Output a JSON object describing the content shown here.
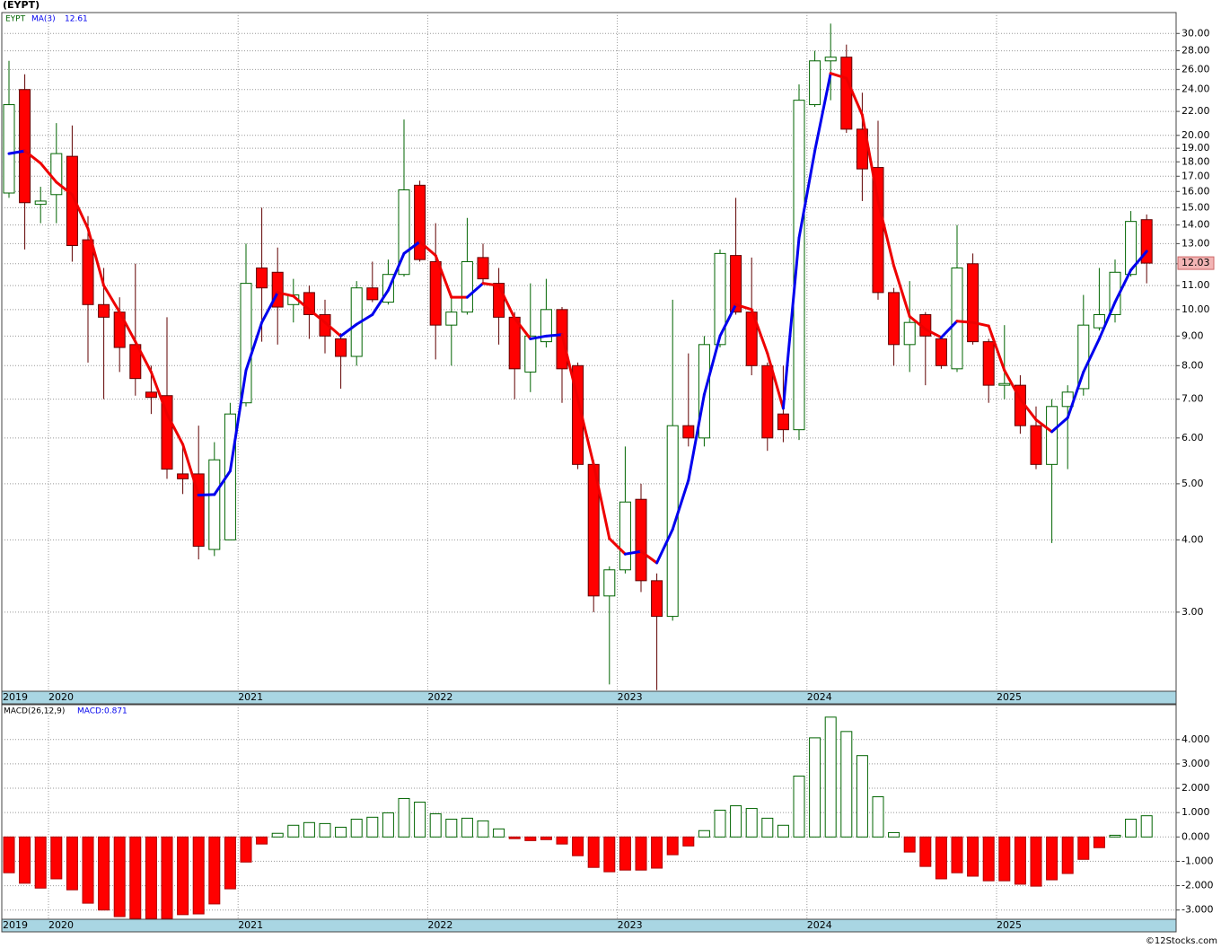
{
  "title": "(EYPT)",
  "footer": "©12Stocks.com",
  "chart_data": [
    {
      "type": "candlestick",
      "symbol": "EYPT",
      "categories": [
        "2019",
        null,
        null,
        "2020",
        null,
        null,
        null,
        null,
        null,
        null,
        null,
        null,
        null,
        null,
        null,
        "2021",
        null,
        null,
        null,
        null,
        null,
        null,
        null,
        null,
        null,
        null,
        null,
        "2022",
        null,
        null,
        null,
        null,
        null,
        null,
        null,
        null,
        null,
        null,
        null,
        "2023",
        null,
        null,
        null,
        null,
        null,
        null,
        null,
        null,
        null,
        null,
        null,
        "2024",
        null,
        null,
        null,
        null,
        null,
        null,
        null,
        null,
        null,
        null,
        null,
        "2025",
        null,
        null,
        null,
        null,
        null,
        null,
        null,
        null,
        null
      ],
      "open": [
        15.9,
        24,
        15.2,
        15.8,
        18.4,
        13.2,
        10.2,
        9.9,
        8.7,
        7.2,
        7.1,
        5.2,
        5.2,
        3.85,
        4.0,
        6.9,
        11.8,
        11.6,
        10.2,
        10.7,
        9.8,
        8.9,
        8.3,
        10.9,
        10.3,
        11.5,
        16.4,
        12.1,
        9.4,
        9.9,
        12.3,
        11.1,
        9.7,
        7.8,
        8.8,
        10,
        8,
        5.4,
        3.2,
        3.55,
        4.7,
        3.4,
        2.95,
        6.3,
        6.0,
        8.7,
        12.4,
        9.9,
        8,
        6.6,
        6.2,
        22.6,
        26.9,
        27.3,
        20.5,
        17.6,
        10.7,
        8.7,
        9.8,
        8.9,
        7.9,
        12,
        8.8,
        7.4,
        7.4,
        6.3,
        5.4,
        6.8,
        7.3,
        9.3,
        9.8,
        11.5,
        14.3
      ],
      "high": [
        26.9,
        25.5,
        16.3,
        21,
        20.8,
        14.5,
        11.8,
        10.5,
        12,
        8,
        9.7,
        5.8,
        6.3,
        5.9,
        6.9,
        13,
        15,
        12.8,
        11.3,
        11,
        10.4,
        9.1,
        11.2,
        12.1,
        12.2,
        21.3,
        16.7,
        14.1,
        10.5,
        14.4,
        13,
        11.8,
        9.9,
        11.1,
        11.3,
        10.1,
        8.1,
        5.5,
        3.6,
        5.8,
        5.0,
        3.5,
        10.4,
        8.4,
        9,
        12.7,
        15.6,
        12.3,
        8.1,
        8,
        24.5,
        28,
        31.2,
        28.7,
        23.7,
        21.2,
        10.9,
        11.2,
        9.9,
        8.9,
        14,
        12.5,
        8.9,
        9.4,
        7.7,
        6.8,
        7,
        7.4,
        10.6,
        11.8,
        12.2,
        14.8,
        14.6
      ],
      "low": [
        15.6,
        12.7,
        14.1,
        14.1,
        12.1,
        8.1,
        7,
        7.8,
        7.1,
        6.6,
        5.1,
        4.8,
        3.7,
        3.75,
        4.0,
        6.8,
        8.8,
        8.7,
        9.5,
        8.9,
        8.4,
        7.3,
        8,
        10.3,
        10.2,
        11.4,
        12.1,
        8.2,
        8,
        9.8,
        11.1,
        8.7,
        7,
        7.2,
        8.6,
        6.9,
        5.3,
        3.0,
        2.25,
        3.5,
        3.25,
        2.2,
        2.9,
        5.8,
        5.8,
        8.6,
        9.8,
        7.7,
        5.7,
        5.9,
        5.95,
        22.4,
        23,
        20.2,
        15.4,
        10.4,
        8,
        7.8,
        7.4,
        7.9,
        7.8,
        8.7,
        6.9,
        7,
        6.1,
        5.3,
        3.95,
        5.3,
        7.1,
        9.2,
        9.5,
        11.4,
        11.1
      ],
      "close": [
        22.6,
        15.3,
        15.4,
        18.6,
        12.9,
        10.2,
        9.7,
        8.6,
        7.6,
        7.05,
        5.3,
        5.1,
        3.9,
        5.5,
        6.6,
        11.1,
        10.9,
        10.1,
        10.6,
        9.8,
        9,
        8.3,
        10.9,
        10.4,
        11.5,
        16.1,
        12.2,
        9.4,
        9.9,
        12.1,
        11.3,
        9.7,
        7.9,
        9,
        10,
        7.9,
        5.4,
        3.2,
        3.55,
        4.65,
        3.4,
        2.95,
        6.3,
        6.0,
        8.7,
        12.5,
        9.9,
        8,
        6,
        6.2,
        23,
        26.9,
        27.3,
        20.5,
        17.5,
        10.7,
        8.7,
        9.5,
        9,
        8,
        11.8,
        8.8,
        7.4,
        7.45,
        6.3,
        5.4,
        6.8,
        7.2,
        9.4,
        9.8,
        11.6,
        14.2,
        12.03
      ],
      "up_color": "#006400",
      "down_color": "#ff0000",
      "ma": {
        "name": "MA(3)",
        "current": 12.61,
        "up_color": "#0000ee",
        "down_color": "#ee0000",
        "values": [
          18.6,
          18.8,
          17.9,
          16.6,
          15.8,
          13.8,
          11.0,
          9.9,
          8.8,
          7.8,
          6.6,
          5.85,
          4.78,
          4.79,
          5.26,
          7.85,
          9.5,
          10.7,
          10.55,
          10.0,
          9.5,
          9.0,
          9.43,
          9.8,
          10.8,
          12.5,
          13.1,
          12.4,
          10.5,
          10.5,
          11.1,
          11.0,
          9.66,
          8.9,
          9.0,
          9.05,
          7.0,
          5.4,
          4.02,
          3.78,
          3.82,
          3.65,
          4.17,
          5.07,
          7.13,
          9.0,
          10.2,
          10.0,
          8.4,
          6.75,
          13.3,
          18.8,
          25.6,
          25.1,
          21.7,
          15.4,
          11.9,
          9.73,
          9.25,
          8.95,
          9.55,
          9.5,
          9.37,
          7.85,
          7.0,
          6.45,
          6.15,
          6.5,
          7.8,
          8.9,
          10.3,
          11.7,
          12.61
        ]
      },
      "log_scale": true,
      "grid": true,
      "ylim": [
        2.19,
        32.6
      ],
      "yticks": [
        {
          "value": 3,
          "label": "3.00"
        },
        {
          "value": 4,
          "label": "4.00"
        },
        {
          "value": 5,
          "label": "5.00"
        },
        {
          "value": 6,
          "label": "6.00"
        },
        {
          "value": 7,
          "label": "7.00"
        },
        {
          "value": 8,
          "label": "8.00"
        },
        {
          "value": 9,
          "label": "9.00"
        },
        {
          "value": 10,
          "label": "10.00"
        },
        {
          "value": 11,
          "label": "11.00"
        },
        {
          "value": 12,
          "label": "12.00"
        },
        {
          "value": 13,
          "label": "13.00"
        },
        {
          "value": 14,
          "label": "14.00"
        },
        {
          "value": 15,
          "label": "15.00"
        },
        {
          "value": 16,
          "label": "16.00"
        },
        {
          "value": 17,
          "label": "17.00"
        },
        {
          "value": 18,
          "label": "18.00"
        },
        {
          "value": 19,
          "label": "19.00"
        },
        {
          "value": 20,
          "label": "20.00"
        },
        {
          "value": 22,
          "label": "22.00"
        },
        {
          "value": 24,
          "label": "24.00"
        },
        {
          "value": 26,
          "label": "26.00"
        },
        {
          "value": 28,
          "label": "28.00"
        },
        {
          "value": 30,
          "label": "30.00"
        }
      ]
    },
    {
      "type": "bar",
      "title": "MACD(26,12,9)",
      "legend_text": "MACD:0.871",
      "categories": [
        "2019",
        null,
        null,
        "2020",
        null,
        null,
        null,
        null,
        null,
        null,
        null,
        null,
        null,
        null,
        null,
        "2021",
        null,
        null,
        null,
        null,
        null,
        null,
        null,
        null,
        null,
        null,
        null,
        "2022",
        null,
        null,
        null,
        null,
        null,
        null,
        null,
        null,
        null,
        null,
        null,
        "2023",
        null,
        null,
        null,
        null,
        null,
        null,
        null,
        null,
        null,
        null,
        null,
        "2024",
        null,
        null,
        null,
        null,
        null,
        null,
        null,
        null,
        null,
        null,
        null,
        "2025",
        null,
        null,
        null,
        null,
        null,
        null,
        null,
        null,
        null
      ],
      "values": [
        -1.47,
        -1.9,
        -2.1,
        -1.72,
        -2.17,
        -2.72,
        -3.0,
        -3.27,
        -3.35,
        -3.35,
        -3.35,
        -3.19,
        -3.16,
        -2.75,
        -2.13,
        -1.03,
        -0.29,
        0.15,
        0.48,
        0.59,
        0.55,
        0.4,
        0.73,
        0.81,
        0.99,
        1.58,
        1.43,
        0.95,
        0.73,
        0.77,
        0.66,
        0.33,
        -0.07,
        -0.15,
        -0.11,
        -0.29,
        -0.77,
        -1.25,
        -1.43,
        -1.36,
        -1.36,
        -1.28,
        -0.73,
        -0.37,
        0.26,
        1.1,
        1.28,
        1.17,
        0.77,
        0.48,
        2.5,
        4.07,
        4.92,
        4.33,
        3.34,
        1.65,
        0.18,
        -0.62,
        -1.21,
        -1.72,
        -1.47,
        -1.61,
        -1.8,
        -1.8,
        -1.94,
        -2.02,
        -1.76,
        -1.5,
        -0.92,
        -0.44,
        0.07,
        0.73,
        0.871
      ],
      "positive_color": "#006400",
      "negative_color": "#ff0000",
      "grid": true,
      "ylim": [
        -3.38,
        5.43
      ],
      "yticks": [
        {
          "value": -3,
          "label": "-3.000"
        },
        {
          "value": -2,
          "label": "-2.000"
        },
        {
          "value": -1,
          "label": "-1.000"
        },
        {
          "value": 0,
          "label": "0.000"
        },
        {
          "value": 1,
          "label": "1.000"
        },
        {
          "value": 2,
          "label": "2.000"
        },
        {
          "value": 3,
          "label": "3.000"
        },
        {
          "value": 4,
          "label": "4.000"
        }
      ]
    }
  ]
}
